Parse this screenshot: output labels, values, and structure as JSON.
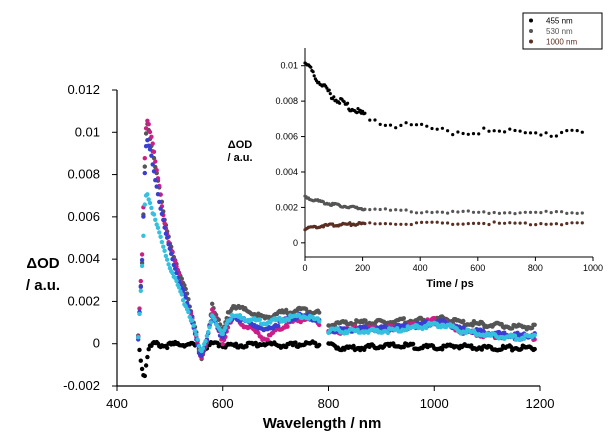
{
  "chart_data": [
    {
      "type": "scatter",
      "xlabel": "Wavelength / nm",
      "ylabel": [
        "ΔOD",
        "/ a.u."
      ],
      "xlim": [
        400,
        1200
      ],
      "ylim": [
        -0.002,
        0.012
      ],
      "xticks": [
        "400",
        "600",
        "800",
        "1000",
        "1200"
      ],
      "yticks": [
        "-0.002",
        "0",
        "0.002",
        "0.004",
        "0.006",
        "0.008",
        "0.01",
        "0.012"
      ],
      "grid": false,
      "series": [
        {
          "color": "#000000",
          "points": [
            [
              440,
              0.0003
            ],
            [
              444,
              -0.0006
            ],
            [
              448,
              -0.0012
            ],
            [
              452,
              -0.0016
            ],
            [
              456,
              -0.0008
            ],
            [
              460,
              -0.0002
            ],
            [
              470,
              0.0
            ],
            [
              490,
              -0.0001
            ],
            [
              520,
              0.0
            ],
            [
              550,
              -0.0001
            ],
            [
              560,
              -0.0003
            ],
            [
              580,
              0.0
            ],
            [
              620,
              -0.0001
            ],
            [
              680,
              0.0
            ],
            [
              720,
              -0.0001
            ],
            [
              760,
              0.0
            ],
            [
              790,
              0.0
            ],
            [
              800,
              0.0
            ],
            [
              820,
              -0.0002
            ],
            [
              860,
              -0.0002
            ],
            [
              900,
              -0.0001
            ],
            [
              950,
              -0.0001
            ],
            [
              1000,
              -0.0002
            ],
            [
              1050,
              -0.0001
            ],
            [
              1100,
              -0.0002
            ],
            [
              1150,
              -0.0002
            ],
            [
              1190,
              -0.0002
            ]
          ]
        },
        {
          "color": "#555555",
          "points": [
            [
              440,
              0.0005
            ],
            [
              448,
              0.004
            ],
            [
              452,
              0.008
            ],
            [
              456,
              0.0105
            ],
            [
              462,
              0.0098
            ],
            [
              470,
              0.0088
            ],
            [
              480,
              0.0074
            ],
            [
              490,
              0.0058
            ],
            [
              500,
              0.0048
            ],
            [
              510,
              0.004
            ],
            [
              520,
              0.0032
            ],
            [
              530,
              0.0025
            ],
            [
              540,
              0.0016
            ],
            [
              550,
              0.0006
            ],
            [
              555,
              -0.0003
            ],
            [
              560,
              -0.0008
            ],
            [
              570,
              0.0
            ],
            [
              580,
              0.0019
            ],
            [
              590,
              0.0012
            ],
            [
              600,
              0.0005
            ],
            [
              610,
              0.0014
            ],
            [
              620,
              0.0018
            ],
            [
              640,
              0.0016
            ],
            [
              660,
              0.0014
            ],
            [
              680,
              0.0012
            ],
            [
              700,
              0.0014
            ],
            [
              720,
              0.0015
            ],
            [
              740,
              0.0016
            ],
            [
              760,
              0.0016
            ],
            [
              780,
              0.0015
            ],
            [
              800,
              0.0009
            ],
            [
              850,
              0.001
            ],
            [
              900,
              0.001
            ],
            [
              950,
              0.0011
            ],
            [
              1000,
              0.0011
            ],
            [
              1020,
              0.0012
            ],
            [
              1050,
              0.001
            ],
            [
              1100,
              0.0009
            ],
            [
              1150,
              0.0008
            ],
            [
              1190,
              0.0008
            ]
          ]
        },
        {
          "color": "#cc1f86",
          "points": [
            [
              440,
              0.0003
            ],
            [
              448,
              0.0045
            ],
            [
              452,
              0.0085
            ],
            [
              456,
              0.0108
            ],
            [
              462,
              0.0102
            ],
            [
              470,
              0.009
            ],
            [
              480,
              0.0074
            ],
            [
              490,
              0.0058
            ],
            [
              500,
              0.0046
            ],
            [
              510,
              0.0038
            ],
            [
              520,
              0.003
            ],
            [
              530,
              0.0022
            ],
            [
              540,
              0.0014
            ],
            [
              550,
              0.0003
            ],
            [
              555,
              -0.0004
            ],
            [
              560,
              -0.0006
            ],
            [
              570,
              0.0002
            ],
            [
              580,
              0.0016
            ],
            [
              590,
              0.0008
            ],
            [
              600,
              0.0
            ],
            [
              610,
              0.0008
            ],
            [
              620,
              0.0012
            ],
            [
              640,
              0.0009
            ],
            [
              660,
              0.0006
            ],
            [
              680,
              0.0002
            ],
            [
              700,
              0.0006
            ],
            [
              720,
              0.0009
            ],
            [
              740,
              0.0011
            ],
            [
              760,
              0.0012
            ],
            [
              780,
              0.001
            ],
            [
              800,
              0.0005
            ],
            [
              850,
              0.0007
            ],
            [
              900,
              0.0007
            ],
            [
              950,
              0.0008
            ],
            [
              1000,
              0.0011
            ],
            [
              1020,
              0.001
            ],
            [
              1050,
              0.0006
            ],
            [
              1100,
              0.0004
            ],
            [
              1150,
              0.0003
            ],
            [
              1190,
              0.0003
            ]
          ]
        },
        {
          "color": "#3a3fd0",
          "points": [
            [
              440,
              0.0003
            ],
            [
              448,
              0.0042
            ],
            [
              452,
              0.0078
            ],
            [
              456,
              0.0097
            ],
            [
              462,
              0.0092
            ],
            [
              470,
              0.0082
            ],
            [
              480,
              0.0068
            ],
            [
              490,
              0.0054
            ],
            [
              500,
              0.0044
            ],
            [
              510,
              0.0036
            ],
            [
              520,
              0.0028
            ],
            [
              530,
              0.0021
            ],
            [
              540,
              0.0013
            ],
            [
              550,
              0.0003
            ],
            [
              555,
              -0.0004
            ],
            [
              560,
              -0.0006
            ],
            [
              570,
              0.0002
            ],
            [
              580,
              0.0014
            ],
            [
              590,
              0.0008
            ],
            [
              600,
              0.0002
            ],
            [
              610,
              0.001
            ],
            [
              620,
              0.0013
            ],
            [
              640,
              0.0011
            ],
            [
              660,
              0.0009
            ],
            [
              680,
              0.0006
            ],
            [
              700,
              0.0009
            ],
            [
              720,
              0.0011
            ],
            [
              740,
              0.0013
            ],
            [
              760,
              0.0013
            ],
            [
              780,
              0.0011
            ],
            [
              800,
              0.0006
            ],
            [
              850,
              0.0007
            ],
            [
              900,
              0.0007
            ],
            [
              950,
              0.0008
            ],
            [
              1000,
              0.001
            ],
            [
              1020,
              0.001
            ],
            [
              1050,
              0.0007
            ],
            [
              1100,
              0.0005
            ],
            [
              1150,
              0.0004
            ],
            [
              1190,
              0.0004
            ]
          ]
        },
        {
          "color": "#35c0de",
          "points": [
            [
              440,
              0.0003
            ],
            [
              448,
              0.0038
            ],
            [
              452,
              0.0066
            ],
            [
              456,
              0.0072
            ],
            [
              462,
              0.0067
            ],
            [
              470,
              0.006
            ],
            [
              480,
              0.0052
            ],
            [
              490,
              0.0044
            ],
            [
              500,
              0.0036
            ],
            [
              510,
              0.003
            ],
            [
              520,
              0.0024
            ],
            [
              530,
              0.0018
            ],
            [
              540,
              0.0012
            ],
            [
              550,
              0.0004
            ],
            [
              555,
              -0.0002
            ],
            [
              560,
              -0.0004
            ],
            [
              570,
              0.0004
            ],
            [
              580,
              0.0013
            ],
            [
              590,
              0.0008
            ],
            [
              600,
              0.0005
            ],
            [
              610,
              0.0011
            ],
            [
              620,
              0.0013
            ],
            [
              640,
              0.0012
            ],
            [
              660,
              0.0011
            ],
            [
              680,
              0.001
            ],
            [
              700,
              0.0011
            ],
            [
              720,
              0.0012
            ],
            [
              740,
              0.0013
            ],
            [
              760,
              0.0013
            ],
            [
              780,
              0.0011
            ],
            [
              800,
              0.0006
            ],
            [
              850,
              0.0006
            ],
            [
              900,
              0.0006
            ],
            [
              950,
              0.0007
            ],
            [
              1000,
              0.0009
            ],
            [
              1020,
              0.0009
            ],
            [
              1050,
              0.0006
            ],
            [
              1100,
              0.0004
            ],
            [
              1150,
              0.0003
            ],
            [
              1190,
              0.0003
            ]
          ]
        }
      ]
    },
    {
      "type": "scatter",
      "xlabel": "Time / ps",
      "ylabel": [
        "ΔOD",
        "/ a.u."
      ],
      "xlim": [
        0,
        1000
      ],
      "ylim": [
        -0.0008,
        0.011
      ],
      "xticks": [
        "0",
        "200",
        "400",
        "600",
        "800",
        "1000"
      ],
      "yticks": [
        "0",
        "0.002",
        "0.004",
        "0.006",
        "0.008",
        "0.01"
      ],
      "legend_position": "top-right",
      "series": [
        {
          "name": "455 nm",
          "color": "#000000",
          "tau": 150
        },
        {
          "name": "530 nm",
          "color": "#555555",
          "tau": 150
        },
        {
          "name": "1000 nm",
          "color": "#5a2e22",
          "tau": 80
        }
      ]
    }
  ]
}
